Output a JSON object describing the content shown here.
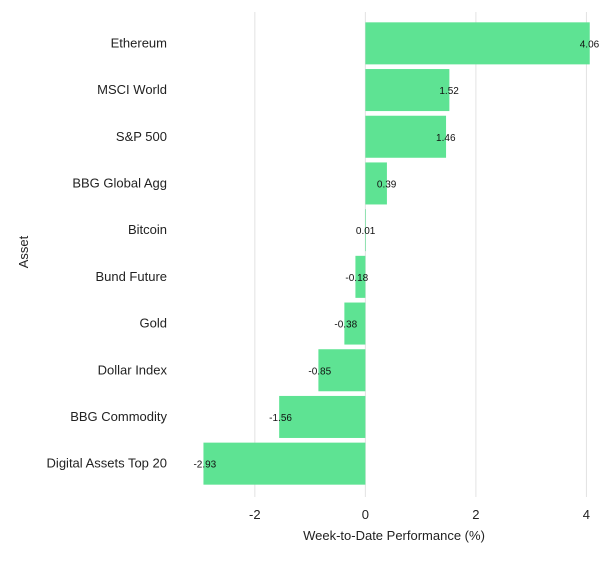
{
  "chart_data": {
    "type": "bar",
    "orientation": "horizontal",
    "categories": [
      "Ethereum",
      "MSCI World",
      "S&P 500",
      "BBG Global Agg",
      "Bitcoin",
      "Bund Future",
      "Gold",
      "Dollar Index",
      "BBG Commodity",
      "Digital Assets Top 20"
    ],
    "values": [
      4.06,
      1.52,
      1.46,
      0.39,
      0.01,
      -0.18,
      -0.38,
      -0.85,
      -1.56,
      -2.93
    ],
    "data_labels": [
      "4.06",
      "1.52",
      "1.46",
      "0.39",
      "0.01",
      "-0.18",
      "-0.38",
      "-0.85",
      "-1.56",
      "-2.93"
    ],
    "xlabel": "Week-to-Date Performance (%)",
    "ylabel": "Asset",
    "xlim": [
      -3.3,
      4.3
    ],
    "xticks": [
      -2,
      0,
      2,
      4
    ],
    "xtick_labels": [
      "-2",
      "0",
      "2",
      "4"
    ],
    "grid": "vertical",
    "bar_color": "#5ee393",
    "grid_color": "#e2e2e2"
  }
}
